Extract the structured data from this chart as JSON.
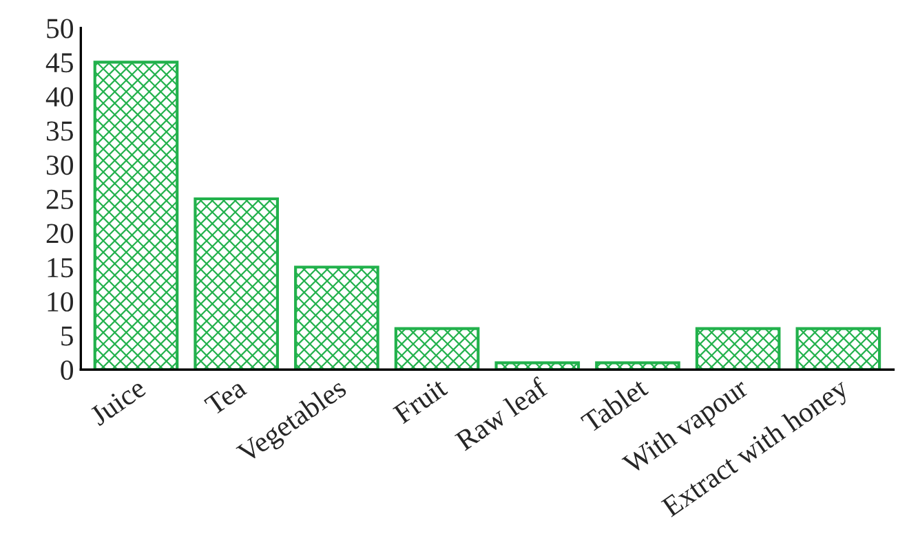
{
  "chart_data": {
    "type": "bar",
    "categories": [
      "Juice",
      "Tea",
      "Vegetables",
      "Fruit",
      "Raw leaf",
      "Tablet",
      "With vapour",
      "Extract with honey"
    ],
    "values": [
      45,
      25,
      15,
      6,
      1,
      1,
      6,
      6
    ],
    "color": "#22b14c",
    "ylim": [
      0,
      50
    ],
    "yticks": [
      0,
      5,
      10,
      15,
      20,
      25,
      30,
      35,
      40,
      45,
      50
    ],
    "grid": false,
    "legend": false
  }
}
